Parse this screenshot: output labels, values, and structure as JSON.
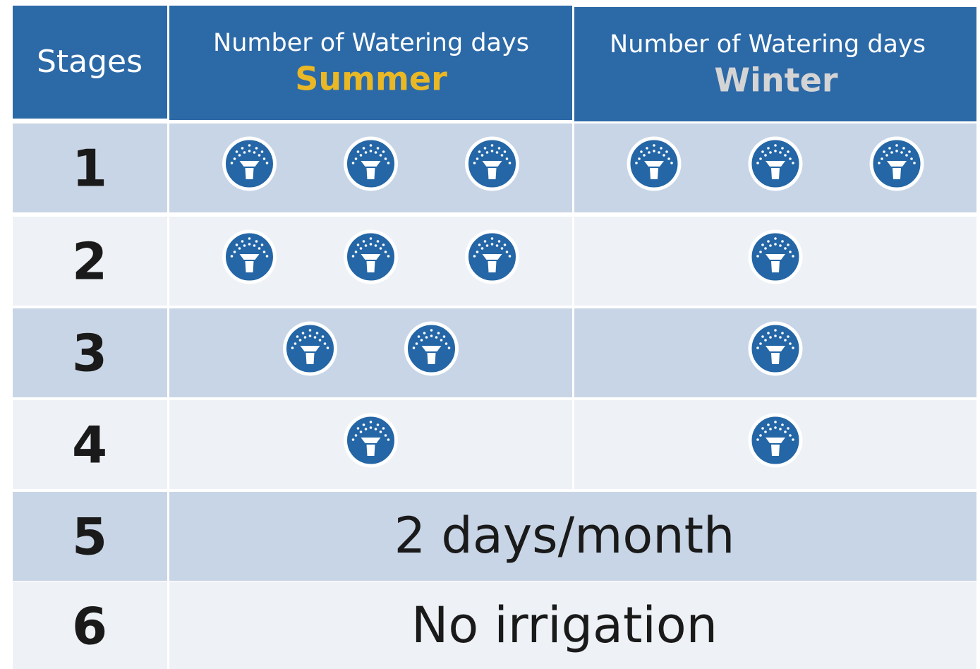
{
  "header": {
    "stages": "Stages",
    "summer": {
      "title": "Number of Watering days",
      "season": "Summer"
    },
    "winter": {
      "title": "Number of Watering days",
      "season": "Winter"
    }
  },
  "rows": [
    {
      "stage": "1",
      "summer_days": 3,
      "winter_days": 3
    },
    {
      "stage": "2",
      "summer_days": 3,
      "winter_days": 1
    },
    {
      "stage": "3",
      "summer_days": 2,
      "winter_days": 1
    },
    {
      "stage": "4",
      "summer_days": 1,
      "winter_days": 1
    },
    {
      "stage": "5",
      "note": "2 days/month"
    },
    {
      "stage": "6",
      "note": "No irrigation"
    }
  ]
}
